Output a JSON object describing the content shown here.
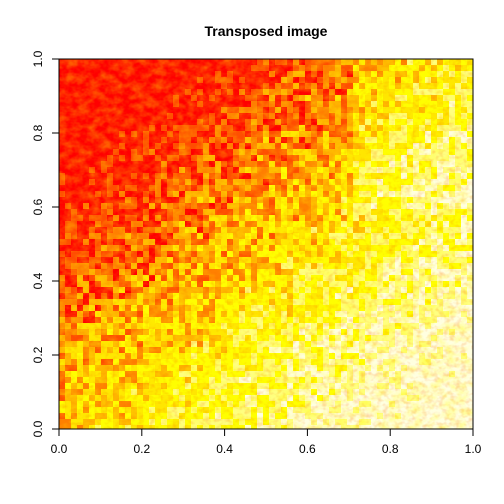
{
  "chart_data": {
    "type": "heatmap",
    "title": "Transposed image",
    "xlabel": "",
    "ylabel": "",
    "xlim": [
      0.0,
      1.0
    ],
    "ylim": [
      0.0,
      1.0
    ],
    "x_ticks": [
      0.0,
      0.2,
      0.4,
      0.6,
      0.8,
      1.0
    ],
    "y_ticks": [
      0.0,
      0.2,
      0.4,
      0.6,
      0.8,
      1.0
    ],
    "x_tick_labels": [
      "0.0",
      "0.2",
      "0.4",
      "0.6",
      "0.8",
      "1.0"
    ],
    "y_tick_labels": [
      "0.0",
      "0.2",
      "0.4",
      "0.6",
      "0.8",
      "1.0"
    ],
    "grid": false,
    "legend": "none",
    "colormap": "heat",
    "colors": [
      "#ff0000",
      "#ff4d00",
      "#ff8000",
      "#ffb300",
      "#ffe600",
      "#ffff00",
      "#ffff80",
      "#ffffe0"
    ],
    "note_region": "red/dense upper-left, yellow/light lower-right along a diagonal boundary"
  }
}
